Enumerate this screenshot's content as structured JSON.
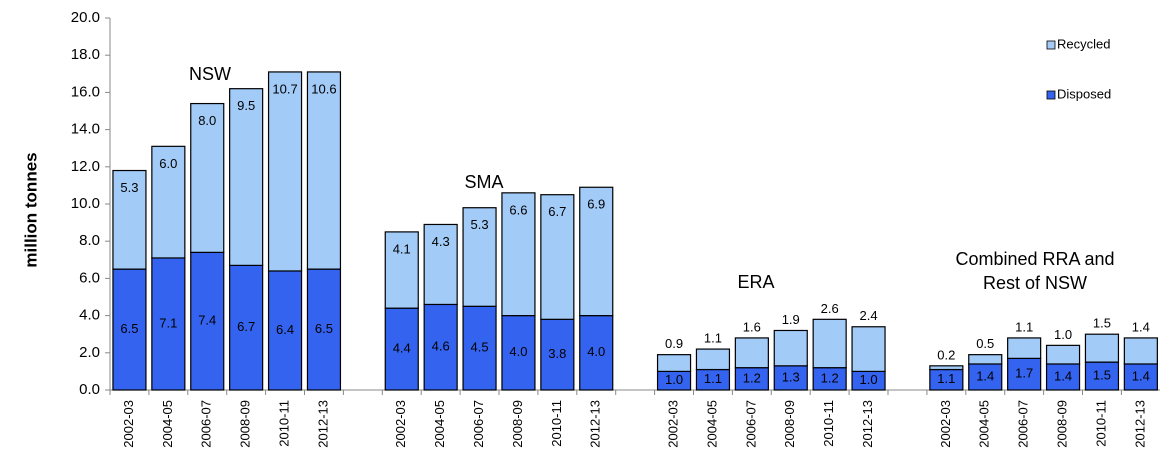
{
  "chart_data": {
    "type": "stacked_bar",
    "y_label": "million tonnes",
    "ylim": [
      0,
      20
    ],
    "yticks": [
      {
        "value": 0,
        "label": "0.0"
      },
      {
        "value": 2,
        "label": "2.0"
      },
      {
        "value": 4,
        "label": "4.0"
      },
      {
        "value": 6,
        "label": "6.0"
      },
      {
        "value": 8,
        "label": "8.0"
      },
      {
        "value": 10,
        "label": "10.0"
      },
      {
        "value": 12,
        "label": "12.0"
      },
      {
        "value": 14,
        "label": "14.0"
      },
      {
        "value": 16,
        "label": "16.0"
      },
      {
        "value": 18,
        "label": "18.0"
      },
      {
        "value": 20,
        "label": "20.0"
      }
    ],
    "groups": [
      {
        "label_lines": [
          "NSW"
        ],
        "categories": [
          "2002-03",
          "2004-05",
          "2006-07",
          "2008-09",
          "2010-11",
          "2012-13"
        ]
      },
      {
        "label_lines": [
          "SMA"
        ],
        "categories": [
          "2002-03",
          "2004-05",
          "2006-07",
          "2008-09",
          "2010-11",
          "2012-13"
        ]
      },
      {
        "label_lines": [
          "ERA"
        ],
        "categories": [
          "2002-03",
          "2004-05",
          "2006-07",
          "2008-09",
          "2010-11",
          "2012-13"
        ]
      },
      {
        "label_lines": [
          "Combined RRA and",
          "Rest of NSW"
        ],
        "categories": [
          "2002-03",
          "2004-05",
          "2006-07",
          "2008-09",
          "2010-11",
          "2012-13"
        ]
      }
    ],
    "series": [
      {
        "name": "Disposed",
        "color": "#3463f0",
        "values": [
          6.5,
          7.1,
          7.4,
          6.7,
          6.4,
          6.5,
          4.4,
          4.6,
          4.5,
          4.0,
          3.8,
          4.0,
          1.0,
          1.1,
          1.2,
          1.3,
          1.2,
          1.0,
          1.1,
          1.4,
          1.7,
          1.4,
          1.5,
          1.4
        ],
        "value_labels": [
          "6.5",
          "7.1",
          "7.4",
          "6.7",
          "6.4",
          "6.5",
          "4.4",
          "4.6",
          "4.5",
          "4.0",
          "3.8",
          "4.0",
          "1.0",
          "1.1",
          "1.2",
          "1.3",
          "1.2",
          "1.0",
          "1.1",
          "1.4",
          "1.7",
          "1.4",
          "1.5",
          "1.4"
        ]
      },
      {
        "name": "Recycled",
        "color": "#a3cbf8",
        "values": [
          5.3,
          6.0,
          8.0,
          9.5,
          10.7,
          10.6,
          4.1,
          4.3,
          5.3,
          6.6,
          6.7,
          6.9,
          0.9,
          1.1,
          1.6,
          1.9,
          2.6,
          2.4,
          0.2,
          0.5,
          1.1,
          1.0,
          1.5,
          1.4
        ],
        "value_labels": [
          "5.3",
          "6.0",
          "8.0",
          "9.5",
          "10.7",
          "10.6",
          "4.1",
          "4.3",
          "5.3",
          "6.6",
          "6.7",
          "6.9",
          "0.9",
          "1.1",
          "1.6",
          "1.9",
          "2.6",
          "2.4",
          "0.2",
          "0.5",
          "1.1",
          "1.0",
          "1.5",
          "1.4"
        ]
      }
    ],
    "legend": "upper right"
  }
}
